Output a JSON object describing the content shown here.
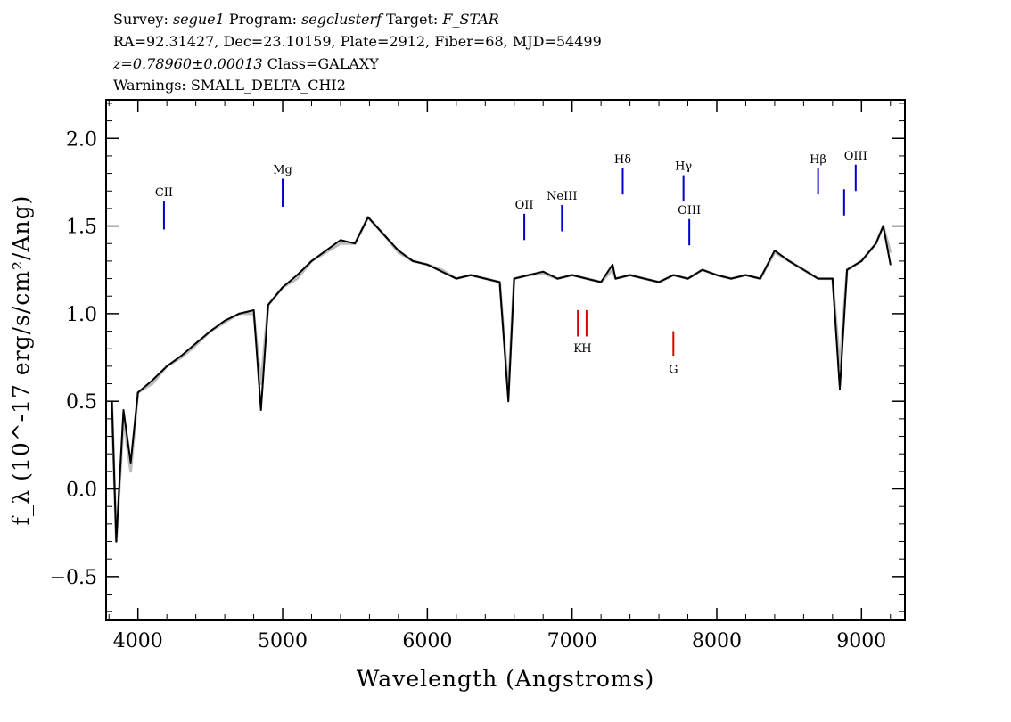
{
  "header": {
    "survey_label": "Survey:",
    "survey": "segue1",
    "program_label": "Program:",
    "program": "segclusterf",
    "target_label": "Target:",
    "target": "F_STAR",
    "line2": "RA=92.31427, Dec=23.10159, Plate=2912, Fiber=68, MJD=54499",
    "redshift": "z=0.78960±0.00013",
    "class": "Class=GALAXY",
    "warnings": "Warnings: SMALL_DELTA_CHI2"
  },
  "chart_data": {
    "type": "line",
    "xlabel": "Wavelength (Angstroms)",
    "ylabel": "f_λ (10^-17 erg/s/cm²/Ang)",
    "xlim": [
      3780,
      9300
    ],
    "ylim": [
      -0.75,
      2.22
    ],
    "xticks": [
      4000,
      5000,
      6000,
      7000,
      8000,
      9000
    ],
    "xtick_labels": [
      "4000",
      "5000",
      "6000",
      "7000",
      "8000",
      "9000"
    ],
    "yticks": [
      -0.5,
      0.0,
      0.5,
      1.0,
      1.5,
      2.0
    ],
    "ytick_labels": [
      "−0.5",
      "0.0",
      "0.5",
      "1.0",
      "1.5",
      "2.0"
    ],
    "series": [
      {
        "role": "flux",
        "color": "#bdbdbd",
        "x": [
          3820,
          3850,
          3900,
          3950,
          4000,
          4100,
          4200,
          4300,
          4400,
          4500,
          4600,
          4700,
          4800,
          4850,
          4900,
          5000,
          5100,
          5200,
          5300,
          5400,
          5500,
          5590,
          5700,
          5800,
          5900,
          6000,
          6100,
          6200,
          6300,
          6400,
          6500,
          6560,
          6600,
          6700,
          6800,
          6900,
          7000,
          7100,
          7200,
          7280,
          7300,
          7400,
          7500,
          7600,
          7700,
          7800,
          7900,
          8000,
          8100,
          8200,
          8300,
          8400,
          8500,
          8600,
          8700,
          8800,
          8850,
          8900,
          9000,
          9100,
          9150,
          9200
        ],
        "values": [
          0.5,
          -0.3,
          0.4,
          0.1,
          0.55,
          0.6,
          0.7,
          0.75,
          0.82,
          0.9,
          0.95,
          1.0,
          1.0,
          0.6,
          1.05,
          1.15,
          1.2,
          1.3,
          1.35,
          1.4,
          1.4,
          1.55,
          1.45,
          1.35,
          1.3,
          1.28,
          1.25,
          1.2,
          1.22,
          1.2,
          1.18,
          0.55,
          1.2,
          1.22,
          1.23,
          1.2,
          1.22,
          1.2,
          1.18,
          1.25,
          1.2,
          1.22,
          1.2,
          1.18,
          1.22,
          1.2,
          1.25,
          1.22,
          1.2,
          1.22,
          1.2,
          1.35,
          1.3,
          1.25,
          1.2,
          1.2,
          0.7,
          1.25,
          1.3,
          1.4,
          1.5,
          1.35
        ]
      },
      {
        "role": "smoothed",
        "color": "#000000",
        "x": [
          3820,
          3850,
          3900,
          3950,
          4000,
          4100,
          4200,
          4300,
          4400,
          4500,
          4600,
          4700,
          4800,
          4850,
          4900,
          5000,
          5100,
          5200,
          5300,
          5400,
          5500,
          5590,
          5700,
          5800,
          5900,
          6000,
          6100,
          6200,
          6300,
          6400,
          6500,
          6560,
          6600,
          6700,
          6800,
          6900,
          7000,
          7100,
          7200,
          7280,
          7300,
          7400,
          7500,
          7600,
          7700,
          7800,
          7900,
          8000,
          8100,
          8200,
          8300,
          8400,
          8500,
          8600,
          8700,
          8800,
          8850,
          8900,
          9000,
          9100,
          9150,
          9200
        ],
        "values": [
          0.5,
          -0.3,
          0.45,
          0.15,
          0.55,
          0.62,
          0.7,
          0.76,
          0.83,
          0.9,
          0.96,
          1.0,
          1.02,
          0.45,
          1.05,
          1.15,
          1.22,
          1.3,
          1.36,
          1.42,
          1.4,
          1.55,
          1.45,
          1.36,
          1.3,
          1.28,
          1.24,
          1.2,
          1.22,
          1.2,
          1.18,
          0.5,
          1.2,
          1.22,
          1.24,
          1.2,
          1.22,
          1.2,
          1.18,
          1.28,
          1.2,
          1.22,
          1.2,
          1.18,
          1.22,
          1.2,
          1.25,
          1.22,
          1.2,
          1.22,
          1.2,
          1.36,
          1.3,
          1.25,
          1.2,
          1.2,
          0.57,
          1.25,
          1.3,
          1.4,
          1.5,
          1.28
        ]
      }
    ],
    "emission_lines": [
      {
        "label": "CII",
        "x": 4180,
        "y1": 1.48,
        "y2": 1.64,
        "label_y": 1.67
      },
      {
        "label": "Mg",
        "x": 5000,
        "y1": 1.61,
        "y2": 1.77,
        "label_y": 1.8
      },
      {
        "label": "OII",
        "x": 6670,
        "y1": 1.42,
        "y2": 1.57,
        "label_y": 1.6
      },
      {
        "label": "NeIII",
        "x": 6930,
        "y1": 1.47,
        "y2": 1.62,
        "label_y": 1.65
      },
      {
        "label": "Hδ",
        "x": 7350,
        "y1": 1.68,
        "y2": 1.83,
        "label_y": 1.86
      },
      {
        "label": "Hγ",
        "x": 7770,
        "y1": 1.64,
        "y2": 1.79,
        "label_y": 1.82
      },
      {
        "label": "OIII",
        "x": 7810,
        "y1": 1.39,
        "y2": 1.54,
        "label_y": 1.57
      },
      {
        "label": "Hβ",
        "x": 8700,
        "y1": 1.68,
        "y2": 1.83,
        "label_y": 1.86
      },
      {
        "label": "",
        "x": 8880,
        "y1": 1.56,
        "y2": 1.71,
        "label_y": 1.74
      },
      {
        "label": "OIII",
        "x": 8960,
        "y1": 1.7,
        "y2": 1.85,
        "label_y": 1.88
      }
    ],
    "absorption_lines": [
      {
        "label": "K",
        "x": 7040,
        "y1": 0.87,
        "y2": 1.02,
        "label_y": 0.78
      },
      {
        "label": "H",
        "x": 7100,
        "y1": 0.87,
        "y2": 1.02,
        "label_y": 0.78
      },
      {
        "label": "G",
        "x": 7700,
        "y1": 0.76,
        "y2": 0.9,
        "label_y": 0.66
      }
    ],
    "line_colors": {
      "emission": "#0000cc",
      "absorption": "#dd0000"
    }
  }
}
